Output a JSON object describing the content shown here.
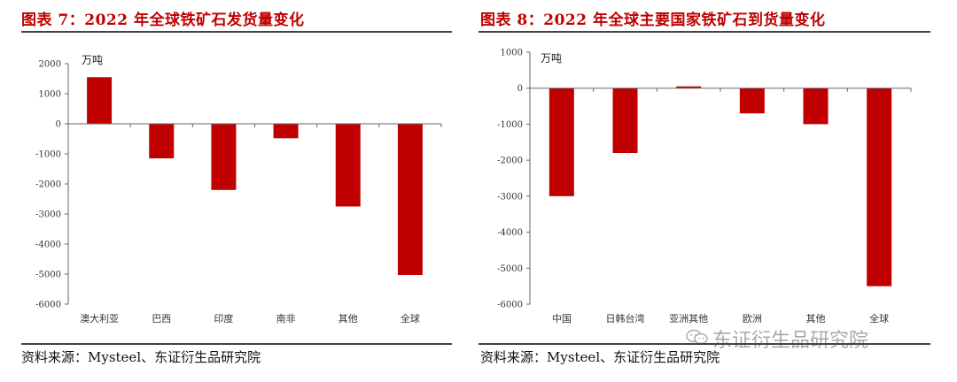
{
  "figures": [
    {
      "title": "图表 7：2022 年全球铁矿石发货量变化",
      "source": "资料来源：Mysteel、东证衍生品研究院"
    },
    {
      "title": "图表 8：2022 年全球主要国家铁矿石到货量变化",
      "source": "资料来源：Mysteel、东证衍生品研究院",
      "watermark": "东证衍生品研究院",
      "watermark_icon": "wechat-icon"
    }
  ],
  "chart_data": [
    {
      "type": "bar",
      "unit_label": "万吨",
      "categories": [
        "澳大利亚",
        "巴西",
        "印度",
        "南非",
        "其他",
        "全球"
      ],
      "values": [
        1550,
        -1150,
        -2200,
        -480,
        -2750,
        -5030
      ],
      "ylim": [
        -6000,
        2000
      ],
      "yticks": [
        2000,
        1000,
        0,
        -1000,
        -2000,
        -3000,
        -4000,
        -5000,
        -6000
      ],
      "bar_color": "#c00000",
      "grid": false
    },
    {
      "type": "bar",
      "unit_label": "万吨",
      "categories": [
        "中国",
        "日韩台湾",
        "亚洲其他",
        "欧洲",
        "其他",
        "全球"
      ],
      "values": [
        -3000,
        -1800,
        50,
        -700,
        -1000,
        -5500
      ],
      "ylim": [
        -6000,
        1000
      ],
      "yticks": [
        1000,
        0,
        -1000,
        -2000,
        -3000,
        -4000,
        -5000,
        -6000
      ],
      "bar_color": "#c00000",
      "grid": false
    }
  ]
}
